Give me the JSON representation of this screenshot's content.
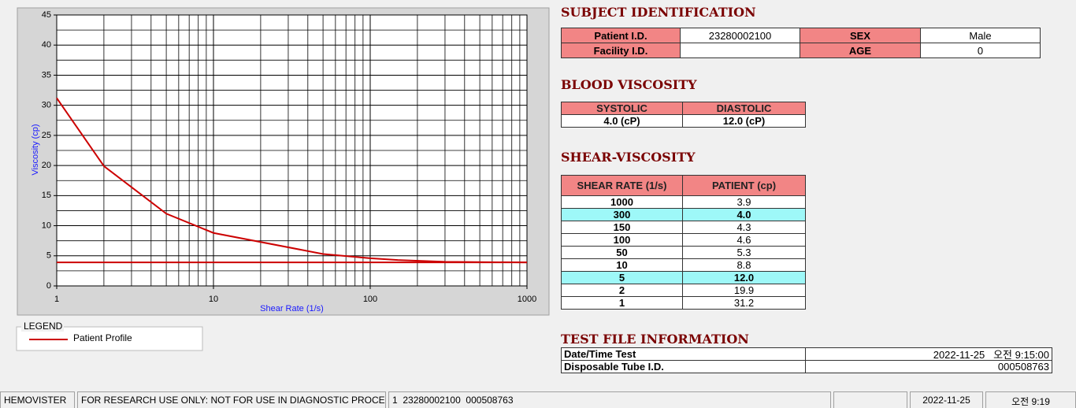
{
  "chart_data": {
    "type": "line",
    "xlabel": "Shear Rate (1/s)",
    "ylabel": "Viscosity (cp)",
    "xscale": "log",
    "xlim": [
      1,
      1000
    ],
    "xticks": [
      1,
      10,
      100,
      1000
    ],
    "x_minor_ticks": [
      2,
      3,
      4,
      5,
      6,
      7,
      8,
      9,
      20,
      30,
      40,
      50,
      60,
      70,
      80,
      90,
      200,
      300,
      400,
      500,
      600,
      700,
      800,
      900
    ],
    "ylim": [
      0,
      45
    ],
    "yticks": [
      0,
      5,
      10,
      15,
      20,
      25,
      30,
      35,
      40,
      45
    ],
    "y_minor_ticks": [
      2.5,
      7.5,
      12.5,
      17.5,
      22.5,
      27.5,
      32.5,
      37.5,
      42.5
    ],
    "grid": true,
    "legend_title": "LEGEND",
    "series": [
      {
        "name": "Patient Profile",
        "color": "#cc0000",
        "x": [
          1,
          2,
          5,
          10,
          50,
          100,
          150,
          300,
          1000
        ],
        "values": [
          31.2,
          19.9,
          12.0,
          8.8,
          5.3,
          4.6,
          4.3,
          4.0,
          3.9
        ]
      },
      {
        "color": "#cc0000",
        "x": [
          1,
          1000
        ],
        "values": [
          3.9,
          3.9
        ]
      }
    ]
  },
  "subject": {
    "title": "SUBJECT IDENTIFICATION",
    "fields": [
      {
        "label": "Patient I.D.",
        "value": "23280002100"
      },
      {
        "label": "SEX",
        "value": "Male"
      },
      {
        "label": "Facility I.D."
      },
      {
        "label": "AGE",
        "value": "0"
      }
    ]
  },
  "blood": {
    "title": "BLOOD VISCOSITY",
    "headers": [
      "SYSTOLIC",
      "DIASTOLIC"
    ],
    "values": [
      "4.0 (cP)",
      "12.0 (cP)"
    ]
  },
  "shear": {
    "title": "SHEAR-VISCOSITY",
    "headers": [
      "SHEAR RATE (1/s)",
      "PATIENT (cp)"
    ],
    "rows": [
      [
        "1000",
        "3.9"
      ],
      [
        "300",
        "4.0"
      ],
      [
        "150",
        "4.3"
      ],
      [
        "100",
        "4.6"
      ],
      [
        "50",
        "5.3"
      ],
      [
        "10",
        "8.8"
      ],
      [
        "5",
        "12.0"
      ],
      [
        "2",
        "19.9"
      ],
      [
        "1",
        "31.2"
      ]
    ],
    "highlighted_rows": [
      1,
      6
    ]
  },
  "test_file": {
    "title": "TEST FILE INFORMATION",
    "rows": [
      [
        "Date/Time Test",
        "2022-11-25   오전 9:15:00"
      ],
      [
        "Disposable Tube I.D.",
        "000508763"
      ]
    ]
  },
  "status_bar": [
    "HEMOVISTER",
    "FOR RESEARCH USE ONLY: NOT FOR USE IN DIAGNOSTIC PROCEDURES",
    "1  23280002100  000508763",
    "2022-11-25",
    "오전 9:19"
  ]
}
